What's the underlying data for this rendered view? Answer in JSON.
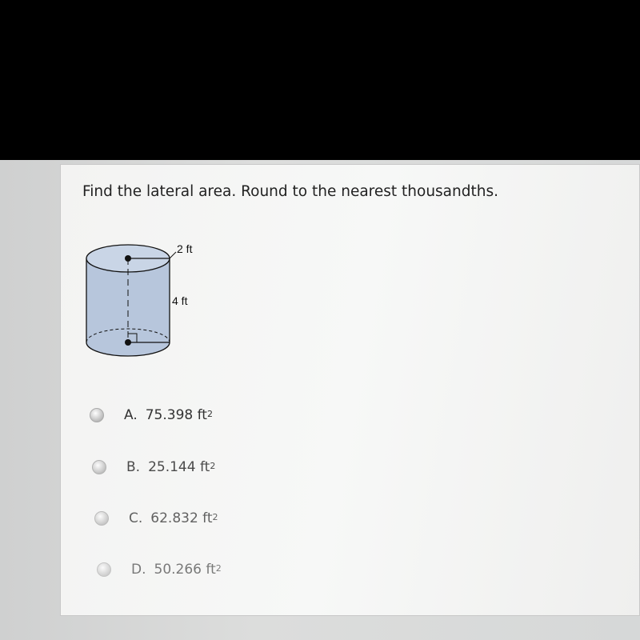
{
  "question": "Find the lateral area. Round to the nearest thousandths.",
  "figure": {
    "radius_label": "2 ft",
    "height_label": "4 ft"
  },
  "options": [
    {
      "letter": "A.",
      "text": "75.398 ft",
      "sup": "2"
    },
    {
      "letter": "B.",
      "text": "25.144 ft",
      "sup": "2"
    },
    {
      "letter": "C.",
      "text": "62.832 ft",
      "sup": "2"
    },
    {
      "letter": "D.",
      "text": "50.266 ft",
      "sup": "2"
    }
  ]
}
